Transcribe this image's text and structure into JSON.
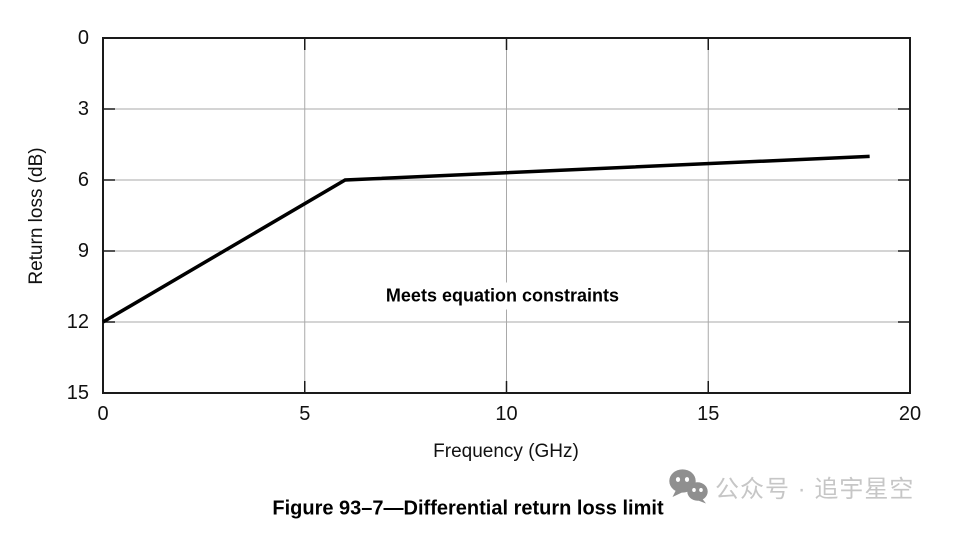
{
  "chart_data": {
    "type": "line",
    "title": "",
    "xlabel": "Frequency (GHz)",
    "ylabel": "Return loss (dB)",
    "xlim": [
      0,
      20
    ],
    "ylim": [
      0,
      15
    ],
    "y_axis_inverted": true,
    "xticks": [
      0,
      5,
      10,
      15,
      20
    ],
    "yticks": [
      0,
      3,
      6,
      9,
      12,
      15
    ],
    "grid": "on",
    "legend": "none",
    "series": [
      {
        "name": "Differential return loss limit",
        "points": [
          [
            0,
            12
          ],
          [
            6,
            6
          ],
          [
            19,
            5
          ]
        ],
        "color": "#000000",
        "stroke_width": 3.5
      }
    ],
    "annotation": {
      "text": "Meets equation constraints",
      "x": 9.9,
      "y": 10.9
    }
  },
  "caption": {
    "text": "Figure 93–7—Differential return loss limit"
  },
  "watermark": {
    "icon": "wechat-logo",
    "text": "公众号 · 追宇星空"
  },
  "colors": {
    "frame": "#1a1a1a",
    "grid": "#a9a9a9",
    "line": "#000000",
    "watermark_icon": "#8f8f8f",
    "watermark_text": "#c6c6c6"
  }
}
